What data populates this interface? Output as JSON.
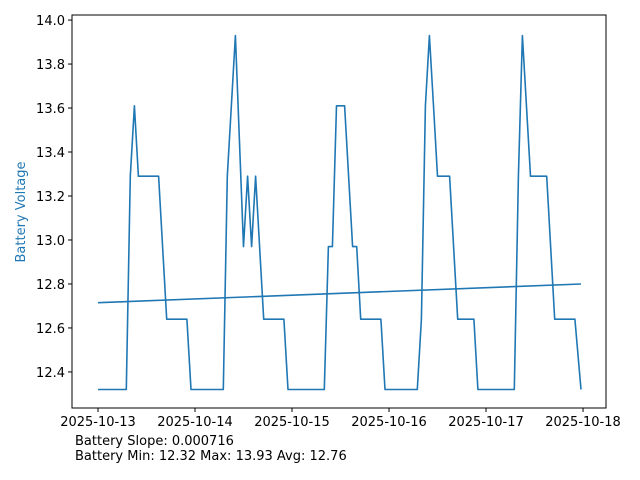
{
  "chart_data": {
    "type": "line",
    "title": "",
    "xlabel": "",
    "ylabel": "Battery Voltage",
    "ylabel_color": "#1f77b4",
    "line_color": "#1f77b4",
    "grid": false,
    "xlim": [
      "2025-10-12 17:34",
      "2025-10-18 05:41"
    ],
    "ylim": [
      12.236,
      14.023
    ],
    "x_ticks": [
      "2025-10-13",
      "2025-10-14",
      "2025-10-15",
      "2025-10-16",
      "2025-10-17",
      "2025-10-18"
    ],
    "y_ticks": [
      "12.4",
      "12.6",
      "12.8",
      "13.0",
      "13.2",
      "13.4",
      "13.6",
      "13.8",
      "14.0"
    ],
    "series": [
      {
        "x": [
          "2025-10-13 00:00",
          "2025-10-13 07:00",
          "2025-10-13 08:00",
          "2025-10-13 09:00",
          "2025-10-13 10:00",
          "2025-10-13 15:00",
          "2025-10-13 17:00",
          "2025-10-13 22:00",
          "2025-10-13 23:00",
          "2025-10-14 07:00",
          "2025-10-14 08:00",
          "2025-10-14 10:00",
          "2025-10-14 12:00",
          "2025-10-14 13:00",
          "2025-10-14 14:00",
          "2025-10-14 15:00",
          "2025-10-14 17:00",
          "2025-10-14 22:00",
          "2025-10-14 23:00",
          "2025-10-15 08:00",
          "2025-10-15 09:00",
          "2025-10-15 10:00",
          "2025-10-15 11:00",
          "2025-10-15 13:00",
          "2025-10-15 15:00",
          "2025-10-15 16:00",
          "2025-10-15 17:00",
          "2025-10-15 22:00",
          "2025-10-15 23:00",
          "2025-10-16 07:00",
          "2025-10-16 08:00",
          "2025-10-16 09:00",
          "2025-10-16 10:00",
          "2025-10-16 11:00",
          "2025-10-16 12:00",
          "2025-10-16 15:00",
          "2025-10-16 17:00",
          "2025-10-16 21:00",
          "2025-10-16 22:00",
          "2025-10-17 07:00",
          "2025-10-17 08:00",
          "2025-10-17 09:00",
          "2025-10-17 11:00",
          "2025-10-17 15:00",
          "2025-10-17 17:00",
          "2025-10-17 22:00",
          "2025-10-17 23:30"
        ],
        "y": [
          12.32,
          12.32,
          13.29,
          13.61,
          13.29,
          13.29,
          12.64,
          12.64,
          12.32,
          12.32,
          13.29,
          13.93,
          12.97,
          13.29,
          12.97,
          13.29,
          12.64,
          12.64,
          12.32,
          12.32,
          12.97,
          12.97,
          13.61,
          13.61,
          12.97,
          12.97,
          12.64,
          12.64,
          12.32,
          12.32,
          12.64,
          13.61,
          13.93,
          13.61,
          13.29,
          13.29,
          12.64,
          12.64,
          12.32,
          12.32,
          13.29,
          13.93,
          13.29,
          13.29,
          12.64,
          12.64,
          12.32
        ]
      },
      {
        "x": [
          "2025-10-13 00:00",
          "2025-10-17 23:30"
        ],
        "y": [
          12.715,
          12.8
        ]
      }
    ]
  },
  "stats": {
    "slope_line": "Battery Slope: 0.000716",
    "summary_line": "Battery Min: 12.32 Max: 13.93 Avg: 12.76"
  }
}
